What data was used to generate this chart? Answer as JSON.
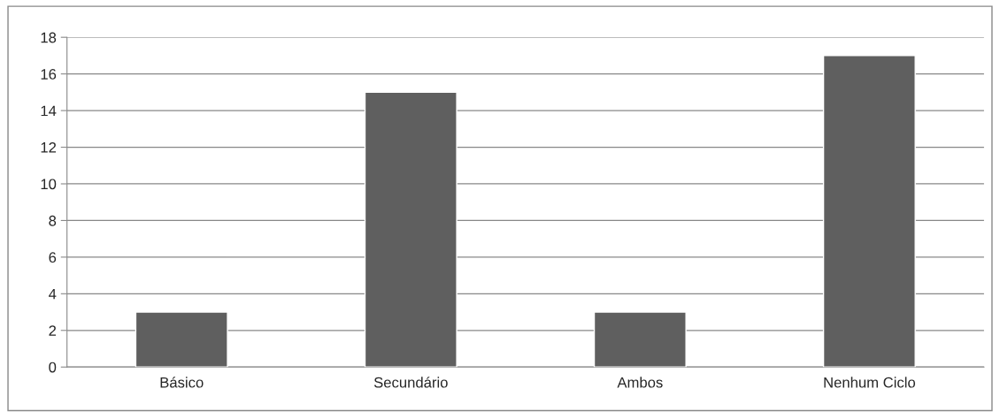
{
  "chart_data": {
    "type": "bar",
    "categories": [
      "Básico",
      "Secundário",
      "Ambos",
      "Nenhum Ciclo"
    ],
    "values": [
      3,
      15,
      3,
      17
    ],
    "color": "#5f5f5f",
    "ylim": [
      0,
      18
    ],
    "yticks": [
      0,
      2,
      4,
      6,
      8,
      10,
      12,
      14,
      16,
      18
    ],
    "grid": "y",
    "legend": false
  }
}
